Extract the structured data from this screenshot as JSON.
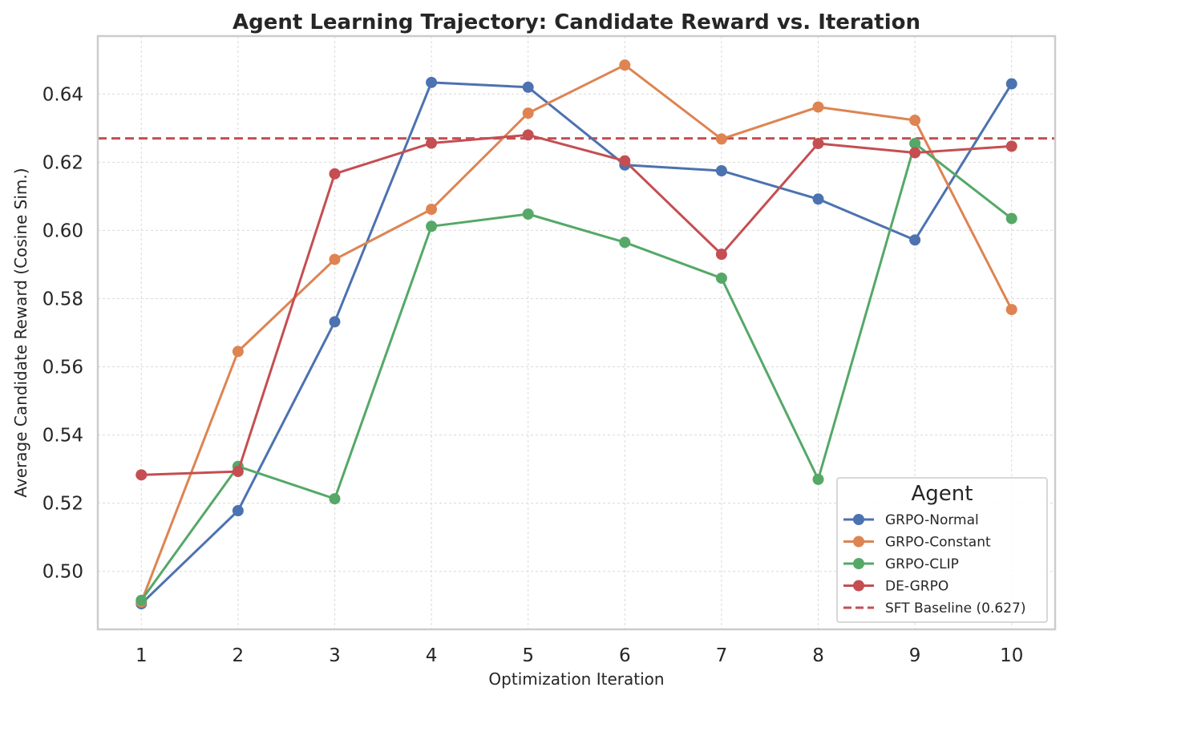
{
  "chart_data": {
    "type": "line",
    "title": "Agent Learning Trajectory: Candidate Reward vs. Iteration",
    "xlabel": "Optimization Iteration",
    "ylabel": "Average Candidate Reward (Cosine Sim.)",
    "x": [
      1,
      2,
      3,
      4,
      5,
      6,
      7,
      8,
      9,
      10
    ],
    "xlim": [
      0.55,
      10.45
    ],
    "ylim": [
      0.483,
      0.657
    ],
    "yticks": [
      0.5,
      0.52,
      0.54,
      0.56,
      0.58,
      0.6,
      0.62,
      0.64
    ],
    "ytick_labels": [
      "0.50",
      "0.52",
      "0.54",
      "0.56",
      "0.58",
      "0.60",
      "0.62",
      "0.64"
    ],
    "grid": true,
    "legend_title": "Agent",
    "legend_position": "lower-right",
    "series": [
      {
        "name": "GRPO-Normal",
        "color": "#4c72b0",
        "values": [
          0.4905,
          0.5178,
          0.5732,
          0.6434,
          0.642,
          0.6192,
          0.6175,
          0.6092,
          0.5972,
          0.643
        ]
      },
      {
        "name": "GRPO-Constant",
        "color": "#dd8452",
        "values": [
          0.491,
          0.5645,
          0.5915,
          0.6062,
          0.6344,
          0.6485,
          0.6268,
          0.6362,
          0.6323,
          0.5768
        ]
      },
      {
        "name": "GRPO-CLIP",
        "color": "#55a868",
        "values": [
          0.4915,
          0.5308,
          0.5213,
          0.6012,
          0.6048,
          0.5965,
          0.586,
          0.527,
          0.6255,
          0.6035
        ]
      },
      {
        "name": "DE-GRPO",
        "color": "#c44e52",
        "values": [
          0.5283,
          0.5293,
          0.6166,
          0.6256,
          0.628,
          0.6204,
          0.593,
          0.6255,
          0.6228,
          0.6247
        ]
      }
    ],
    "baseline": {
      "name": "SFT Baseline (0.627)",
      "value": 0.627,
      "color": "#c44e52",
      "style": "dashed"
    }
  }
}
